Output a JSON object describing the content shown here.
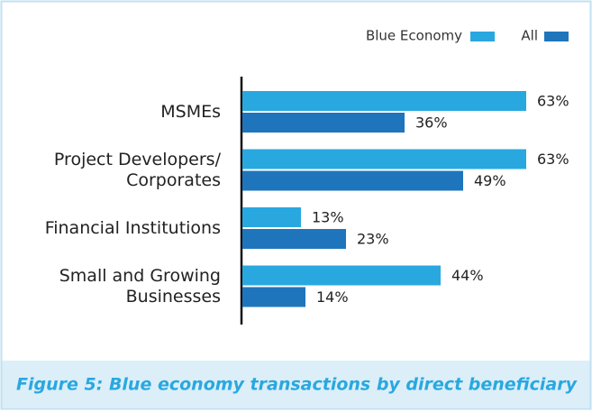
{
  "chart_data": {
    "type": "bar",
    "orientation": "horizontal",
    "categories": [
      "MSMEs",
      "Project Developers/\nCorporates",
      "Financial Institutions",
      "Small and Growing\nBusinesses"
    ],
    "series": [
      {
        "name": "Blue Economy",
        "color": "#29a8e0",
        "values": [
          63,
          63,
          13,
          44
        ],
        "value_labels": [
          "63%",
          "63%",
          "13%",
          "44%"
        ]
      },
      {
        "name": "All",
        "color": "#1f75bc",
        "values": [
          36,
          49,
          23,
          14
        ],
        "value_labels": [
          "36%",
          "49%",
          "23%",
          "14%"
        ]
      }
    ],
    "legend": "top-right",
    "caption": "Figure 5: Blue economy transactions by direct beneficiary"
  }
}
